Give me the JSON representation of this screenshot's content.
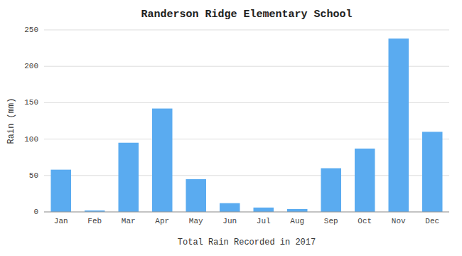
{
  "chart_data": {
    "type": "bar",
    "title": "Randerson Ridge Elementary School",
    "xlabel": "Total Rain Recorded in 2017",
    "ylabel": "Rain (mm)",
    "categories": [
      "Jan",
      "Feb",
      "Mar",
      "Apr",
      "May",
      "Jun",
      "Jul",
      "Aug",
      "Sep",
      "Oct",
      "Nov",
      "Dec"
    ],
    "values": [
      58,
      2,
      95,
      142,
      45,
      12,
      6,
      4,
      60,
      87,
      238,
      110
    ],
    "color": "#5aabf0",
    "ylim": [
      0,
      250
    ],
    "yticks": [
      0,
      50,
      100,
      150,
      200,
      250
    ],
    "grid": true
  }
}
